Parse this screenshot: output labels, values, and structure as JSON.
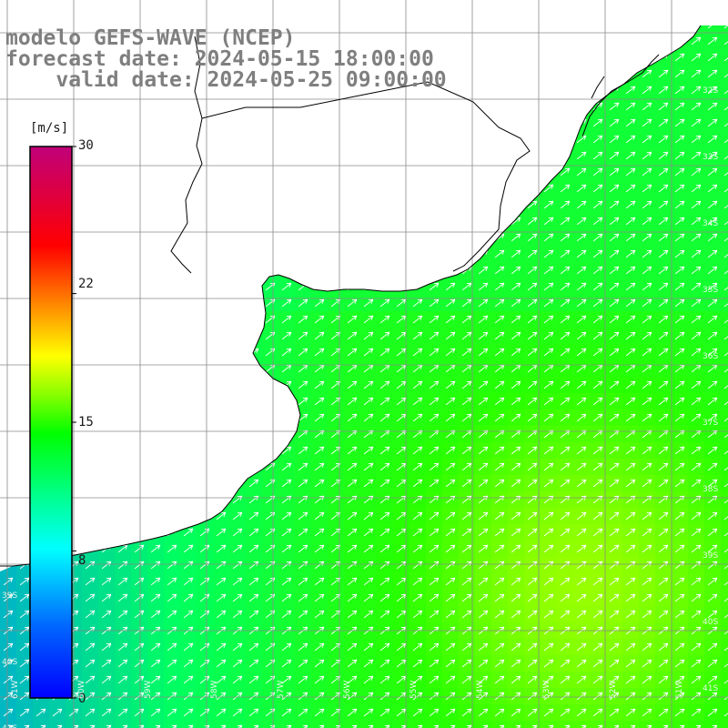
{
  "header": {
    "line1": "modelo GEFS-WAVE (NCEP)",
    "line2": "forecast date: 2024-05-15 18:00:00",
    "line3": "    valid date: 2024-05-25 09:00:00"
  },
  "colorbar": {
    "unit": "[m/s]",
    "ticks": [
      "30",
      "22",
      "15",
      "8",
      "0"
    ],
    "tick_values": [
      30,
      22,
      15,
      8,
      0
    ],
    "range": [
      0,
      30
    ],
    "colors": [
      "#0000ff",
      "#0080ff",
      "#00ffff",
      "#00ff80",
      "#00ff00",
      "#80ff00",
      "#ffff00",
      "#ff8000",
      "#ff0000",
      "#cc0080"
    ]
  },
  "map": {
    "variable": "wind speed and direction",
    "land_color": "#ffffff",
    "coast_color": "#000000",
    "grid_color": "#808080",
    "arrow_color": "#ffffff",
    "lon_labels": [
      "61W",
      "60W",
      "59W",
      "58W",
      "57W",
      "56W",
      "55W",
      "54W",
      "53W",
      "52W",
      "51W"
    ],
    "lat_labels_right": [
      "32S",
      "33S",
      "34S",
      "35S",
      "36S",
      "37S",
      "38S",
      "39S",
      "40S",
      "41S"
    ],
    "lat_labels_left": [
      "39S",
      "40S",
      "41S"
    ],
    "wind_direction": "from southwest",
    "wind_speed_range_ms": [
      6,
      14
    ]
  }
}
